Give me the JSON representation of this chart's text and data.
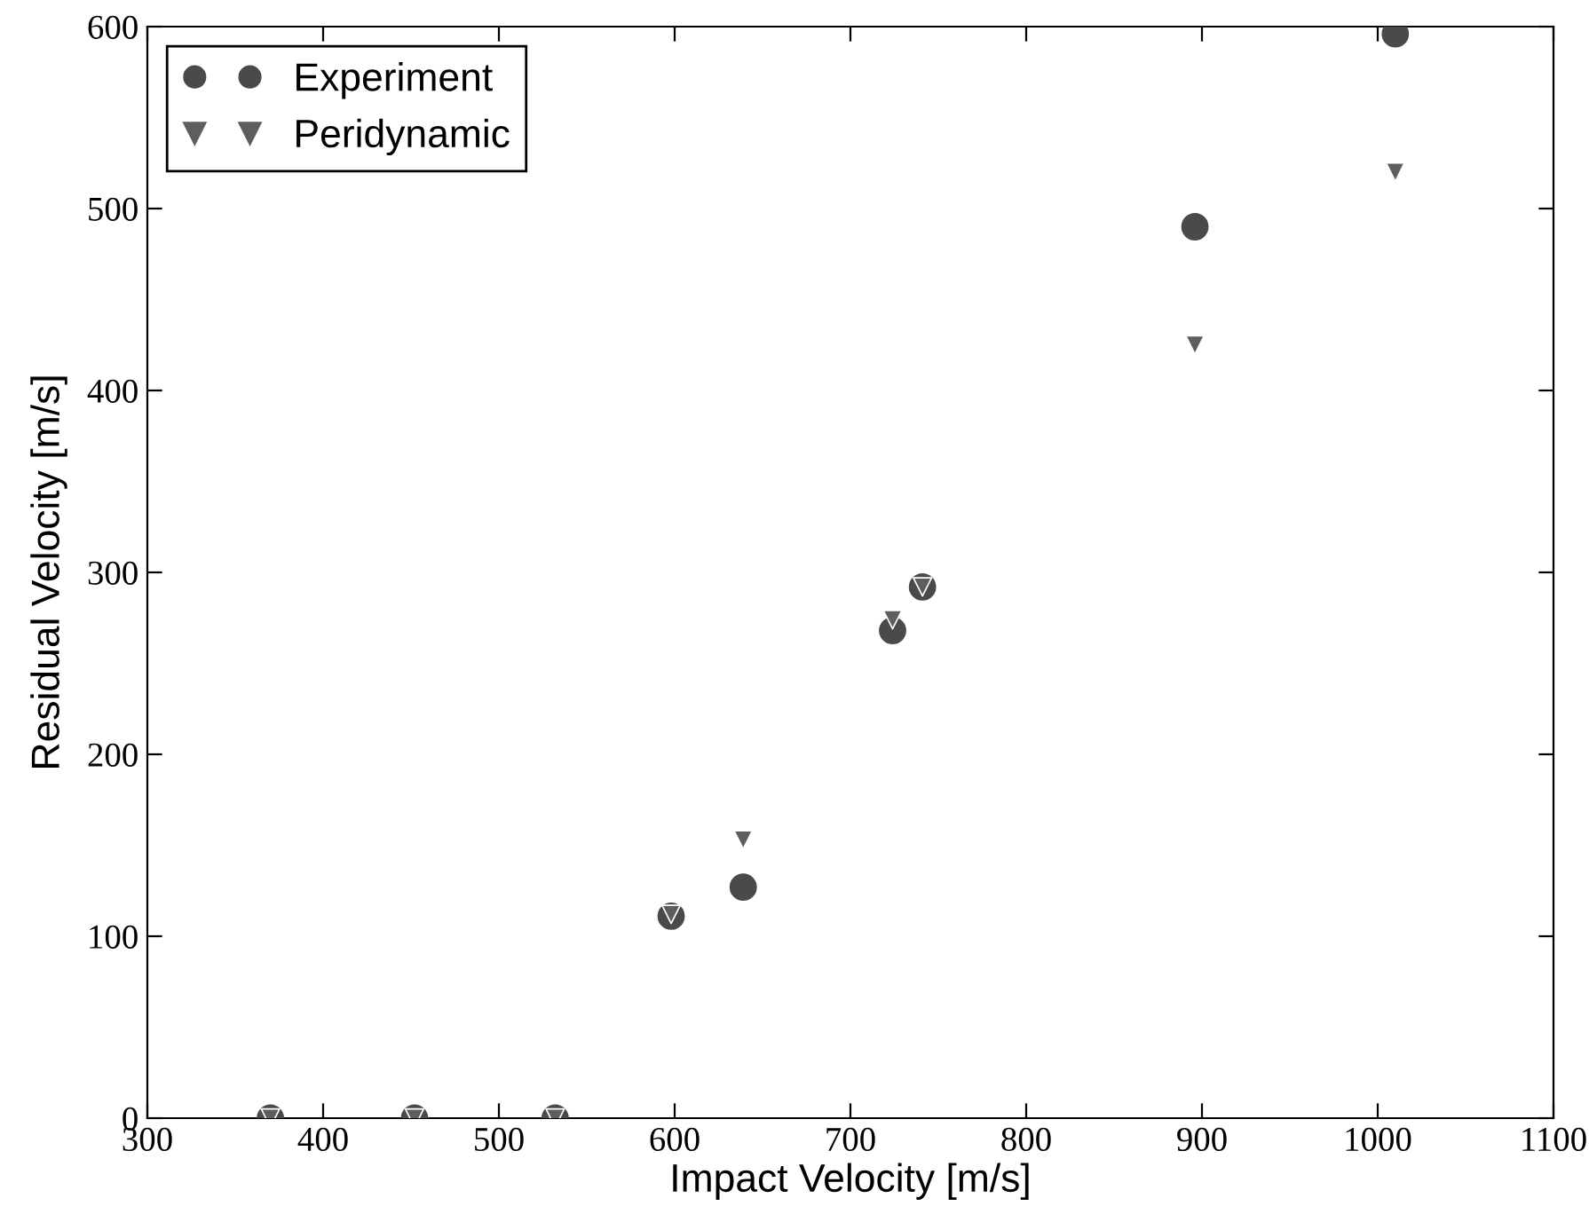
{
  "chart_data": {
    "type": "scatter",
    "xlabel": "Impact Velocity [m/s]",
    "ylabel": "Residual Velocity [m/s]",
    "xlim": [
      300,
      1100
    ],
    "ylim": [
      0,
      600
    ],
    "xticks": [
      300,
      400,
      500,
      600,
      700,
      800,
      900,
      1000,
      1100
    ],
    "yticks": [
      0,
      100,
      200,
      300,
      400,
      500,
      600
    ],
    "grid": false,
    "legend": "top left",
    "series": [
      {
        "name": "Experiment",
        "color": "#4a4a4a",
        "marker": "circle",
        "x": [
          370,
          452,
          532,
          598,
          639,
          724,
          741,
          896,
          1010
        ],
        "values": [
          0,
          0,
          0,
          111,
          127,
          268,
          292,
          490,
          596
        ]
      },
      {
        "name": "Peridynamic",
        "color": "#5e5e5e",
        "marker": "triangle",
        "x": [
          370,
          452,
          532,
          598,
          639,
          724,
          741,
          896,
          1010
        ],
        "values": [
          0,
          0,
          0,
          112,
          153,
          274,
          292,
          425,
          520
        ]
      }
    ]
  }
}
